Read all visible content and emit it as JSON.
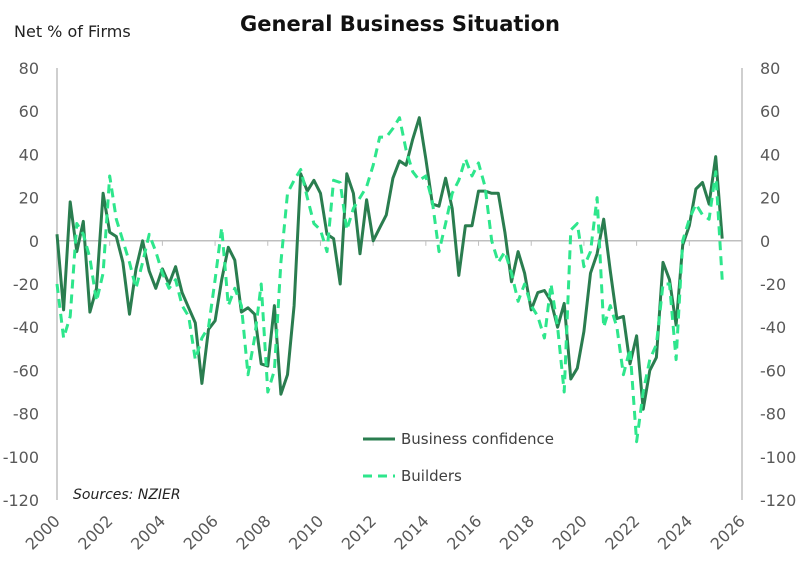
{
  "chart_data": {
    "type": "line",
    "title": "General Business Situation",
    "ylabel": "Net % of Firms",
    "source": "Sources: NZIER",
    "ylim": [
      -120,
      80
    ],
    "yticks": [
      80,
      60,
      40,
      20,
      0,
      -20,
      -40,
      -60,
      -80,
      -100,
      -120
    ],
    "xlim": [
      2000,
      2026
    ],
    "xticks": [
      "2000",
      "2002",
      "2004",
      "2006",
      "2008",
      "2010",
      "2012",
      "2014",
      "2016",
      "2018",
      "2020",
      "2022",
      "2024",
      "2026"
    ],
    "grid": false,
    "legend_position": "bottom-center",
    "x": [
      "2000Q1",
      "2000Q2",
      "2000Q3",
      "2000Q4",
      "2001Q1",
      "2001Q2",
      "2001Q3",
      "2001Q4",
      "2002Q1",
      "2002Q2",
      "2002Q3",
      "2002Q4",
      "2003Q1",
      "2003Q2",
      "2003Q3",
      "2003Q4",
      "2004Q1",
      "2004Q2",
      "2004Q3",
      "2004Q4",
      "2005Q1",
      "2005Q2",
      "2005Q3",
      "2005Q4",
      "2006Q1",
      "2006Q2",
      "2006Q3",
      "2006Q4",
      "2007Q1",
      "2007Q2",
      "2007Q3",
      "2007Q4",
      "2008Q1",
      "2008Q2",
      "2008Q3",
      "2008Q4",
      "2009Q1",
      "2009Q2",
      "2009Q3",
      "2009Q4",
      "2010Q1",
      "2010Q2",
      "2010Q3",
      "2010Q4",
      "2011Q1",
      "2011Q2",
      "2011Q3",
      "2011Q4",
      "2012Q1",
      "2012Q2",
      "2012Q3",
      "2012Q4",
      "2013Q1",
      "2013Q2",
      "2013Q3",
      "2013Q4",
      "2014Q1",
      "2014Q2",
      "2014Q3",
      "2014Q4",
      "2015Q1",
      "2015Q2",
      "2015Q3",
      "2015Q4",
      "2016Q1",
      "2016Q2",
      "2016Q3",
      "2016Q4",
      "2017Q1",
      "2017Q2",
      "2017Q3",
      "2017Q4",
      "2018Q1",
      "2018Q2",
      "2018Q3",
      "2018Q4",
      "2019Q1",
      "2019Q2",
      "2019Q3",
      "2019Q4",
      "2020Q1",
      "2020Q2",
      "2020Q3",
      "2020Q4",
      "2021Q1",
      "2021Q2",
      "2021Q3",
      "2021Q4",
      "2022Q1",
      "2022Q2",
      "2022Q3",
      "2022Q4",
      "2023Q1",
      "2023Q2",
      "2023Q3",
      "2023Q4",
      "2024Q1",
      "2024Q2",
      "2024Q3",
      "2024Q4",
      "2025Q1",
      "2025Q2"
    ],
    "series": [
      {
        "name": "Business confidence",
        "color": "#2a7d4f",
        "style": "solid",
        "values": [
          3,
          -32,
          18,
          -5,
          9,
          -33,
          -22,
          22,
          4,
          2,
          -10,
          -34,
          -13,
          0,
          -14,
          -22,
          -13,
          -20,
          -12,
          -24,
          -31,
          -38,
          -66,
          -41,
          -37,
          -18,
          -3,
          -9,
          -33,
          -31,
          -34,
          -57,
          -58,
          -30,
          -71,
          -62,
          -30,
          31,
          23,
          28,
          22,
          3,
          1,
          -20,
          31,
          22,
          -6,
          19,
          0,
          6,
          12,
          29,
          37,
          35,
          47,
          57,
          38,
          17,
          16,
          29,
          15,
          -16,
          7,
          7,
          23,
          23,
          22,
          22,
          4,
          -19,
          -5,
          -15,
          -32,
          -24,
          -23,
          -28,
          -40,
          -29,
          -64,
          -59,
          -42,
          -15,
          -6,
          10,
          -14,
          -36,
          -35,
          -57,
          -44,
          -78,
          -60,
          -54,
          -10,
          -18,
          -39,
          -2,
          7,
          24,
          27,
          17,
          39,
          1
        ]
      },
      {
        "name": "Builders",
        "color": "#2ee68c",
        "style": "dashed",
        "values": [
          -20,
          -45,
          -35,
          8,
          3,
          -8,
          -28,
          -15,
          30,
          10,
          0,
          -10,
          -22,
          -10,
          3,
          -5,
          -15,
          -22,
          -18,
          -30,
          -35,
          -55,
          -45,
          -40,
          -18,
          6,
          -30,
          -22,
          -30,
          -62,
          -45,
          -20,
          -70,
          -60,
          -10,
          22,
          28,
          33,
          20,
          8,
          5,
          -5,
          28,
          27,
          5,
          15,
          20,
          25,
          35,
          48,
          48,
          52,
          57,
          42,
          32,
          28,
          30,
          18,
          -5,
          8,
          22,
          28,
          38,
          30,
          36,
          25,
          0,
          -10,
          -5,
          -15,
          -28,
          -20,
          -30,
          -35,
          -45,
          -20,
          -40,
          -70,
          5,
          8,
          -12,
          -5,
          20,
          -40,
          -30,
          -40,
          -62,
          -50,
          -93,
          -70,
          -55,
          -48,
          -20,
          -20,
          -55,
          0,
          10,
          17,
          12,
          10,
          32,
          -18
        ]
      }
    ]
  }
}
